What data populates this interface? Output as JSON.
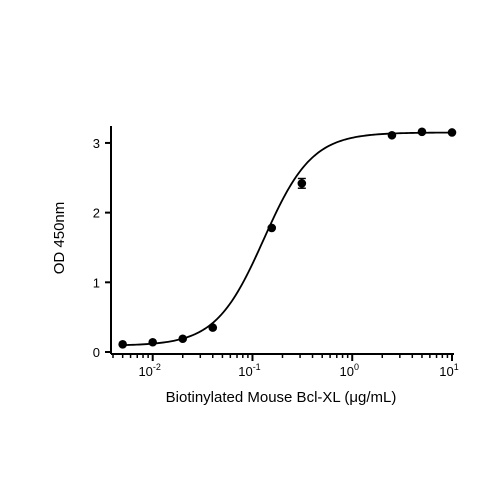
{
  "chart_data": {
    "type": "scatter",
    "title": "",
    "xlabel": "Biotinylated Mouse Bcl-XL (μg/mL)",
    "ylabel": "OD 450nm",
    "xscale": "log",
    "xlim": [
      0.004,
      10
    ],
    "ylim": [
      0,
      3.2
    ],
    "x_ticks": [
      {
        "value": 0.01,
        "base": "10",
        "exp": "-2"
      },
      {
        "value": 0.1,
        "base": "10",
        "exp": "-1"
      },
      {
        "value": 1,
        "base": "10",
        "exp": "0"
      },
      {
        "value": 10,
        "base": "10",
        "exp": "1"
      }
    ],
    "y_ticks": [
      {
        "value": 0,
        "label": "0"
      },
      {
        "value": 1,
        "label": "1"
      },
      {
        "value": 2,
        "label": "2"
      },
      {
        "value": 3,
        "label": "3"
      }
    ],
    "grid": false,
    "legend": "none",
    "series": [
      {
        "x": [
          0.005,
          0.01,
          0.02,
          0.04,
          0.156,
          0.3125,
          2.5,
          5,
          10
        ],
        "y": [
          0.11,
          0.14,
          0.19,
          0.35,
          1.78,
          2.42,
          3.11,
          3.16,
          3.15
        ],
        "error": [
          0.0,
          0.0,
          0.0,
          0.0,
          0.0,
          0.07,
          0.0,
          0.0,
          0.0
        ]
      }
    ],
    "fit": {
      "model": "4PL",
      "bottom": 0.09,
      "top": 3.15,
      "ec50": 0.13,
      "hill": 1.8
    },
    "colors": {
      "axes": "#000000",
      "points": "#000000",
      "curve": "#000000"
    }
  }
}
